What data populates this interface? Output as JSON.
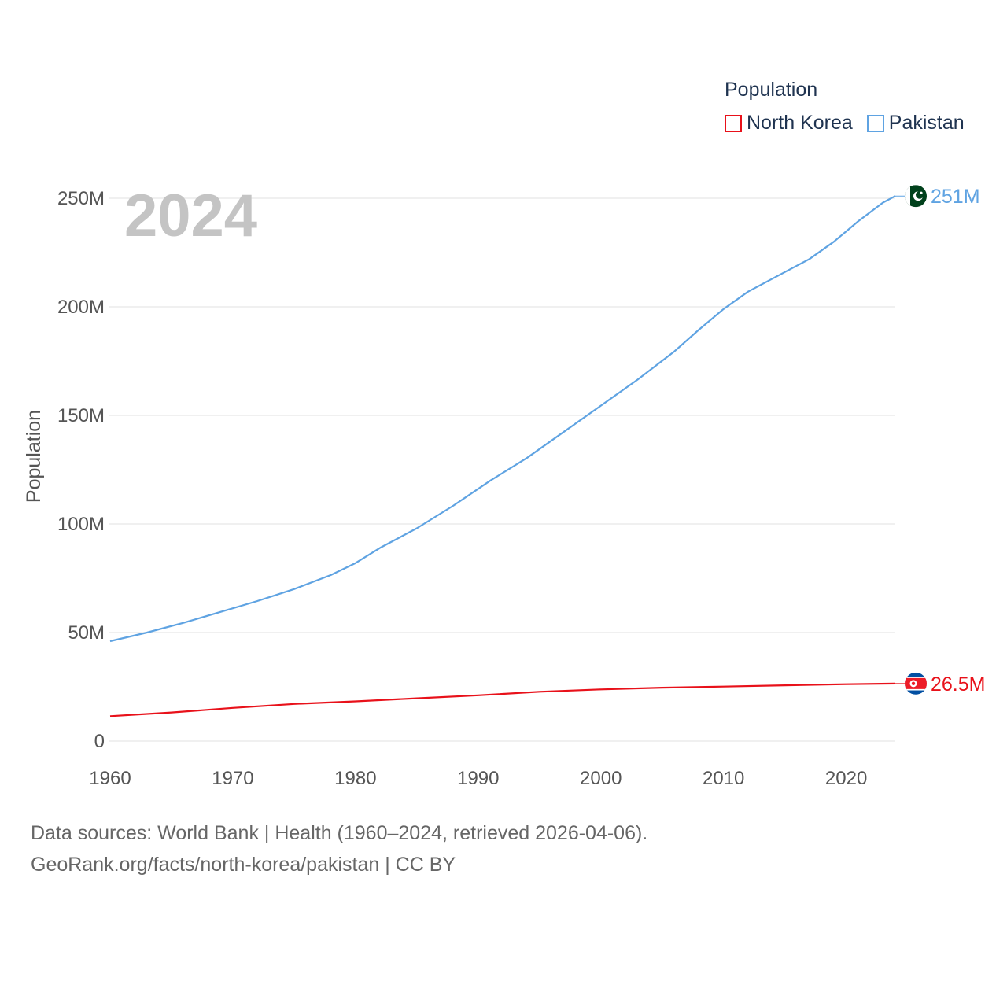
{
  "legend": {
    "title": "Population",
    "items": [
      {
        "name": "North Korea",
        "color": "#e8111a"
      },
      {
        "name": "Pakistan",
        "color": "#5fa3e2"
      }
    ]
  },
  "chart_data": {
    "type": "line",
    "title": "Population",
    "year_label": "2024",
    "xlabel": "",
    "ylabel": "Population",
    "xlim": [
      1960,
      2024
    ],
    "ylim": [
      0,
      250000000
    ],
    "x_ticks": [
      1960,
      1970,
      1980,
      1990,
      2000,
      2010,
      2020
    ],
    "y_ticks": [
      {
        "value": 0,
        "label": "0"
      },
      {
        "value": 50000000,
        "label": "50M"
      },
      {
        "value": 100000000,
        "label": "100M"
      },
      {
        "value": 150000000,
        "label": "150M"
      },
      {
        "value": 200000000,
        "label": "200M"
      },
      {
        "value": 250000000,
        "label": "250M"
      }
    ],
    "series": [
      {
        "name": "Pakistan",
        "color": "#5fa3e2",
        "end_label": "251M",
        "flag_icon": "pakistan-flag-icon",
        "x": [
          1960,
          1963,
          1966,
          1969,
          1972,
          1975,
          1978,
          1980,
          1982,
          1985,
          1988,
          1991,
          1994,
          1997,
          2000,
          2003,
          2006,
          2008,
          2010,
          2012,
          2015,
          2017,
          2019,
          2021,
          2023,
          2024
        ],
        "values": [
          46000000,
          50000000,
          54500000,
          59500000,
          64500000,
          70000000,
          76500000,
          82000000,
          89000000,
          98000000,
          108500000,
          120000000,
          130500000,
          142500000,
          154500000,
          166500000,
          179500000,
          189500000,
          199000000,
          207000000,
          216000000,
          222000000,
          230000000,
          239500000,
          248000000,
          251000000
        ]
      },
      {
        "name": "North Korea",
        "color": "#e8111a",
        "end_label": "26.5M",
        "flag_icon": "north-korea-flag-icon",
        "x": [
          1960,
          1965,
          1970,
          1975,
          1980,
          1985,
          1990,
          1995,
          2000,
          2005,
          2010,
          2015,
          2020,
          2024
        ],
        "values": [
          11500000,
          13200000,
          15300000,
          17100000,
          18300000,
          19700000,
          21100000,
          22700000,
          23800000,
          24600000,
          25100000,
          25700000,
          26200000,
          26500000
        ]
      }
    ]
  },
  "footer": {
    "line1": "Data sources: World Bank | Health (1960–2024, retrieved 2026-04-06).",
    "line2": "GeoRank.org/facts/north-korea/pakistan | CC BY"
  }
}
